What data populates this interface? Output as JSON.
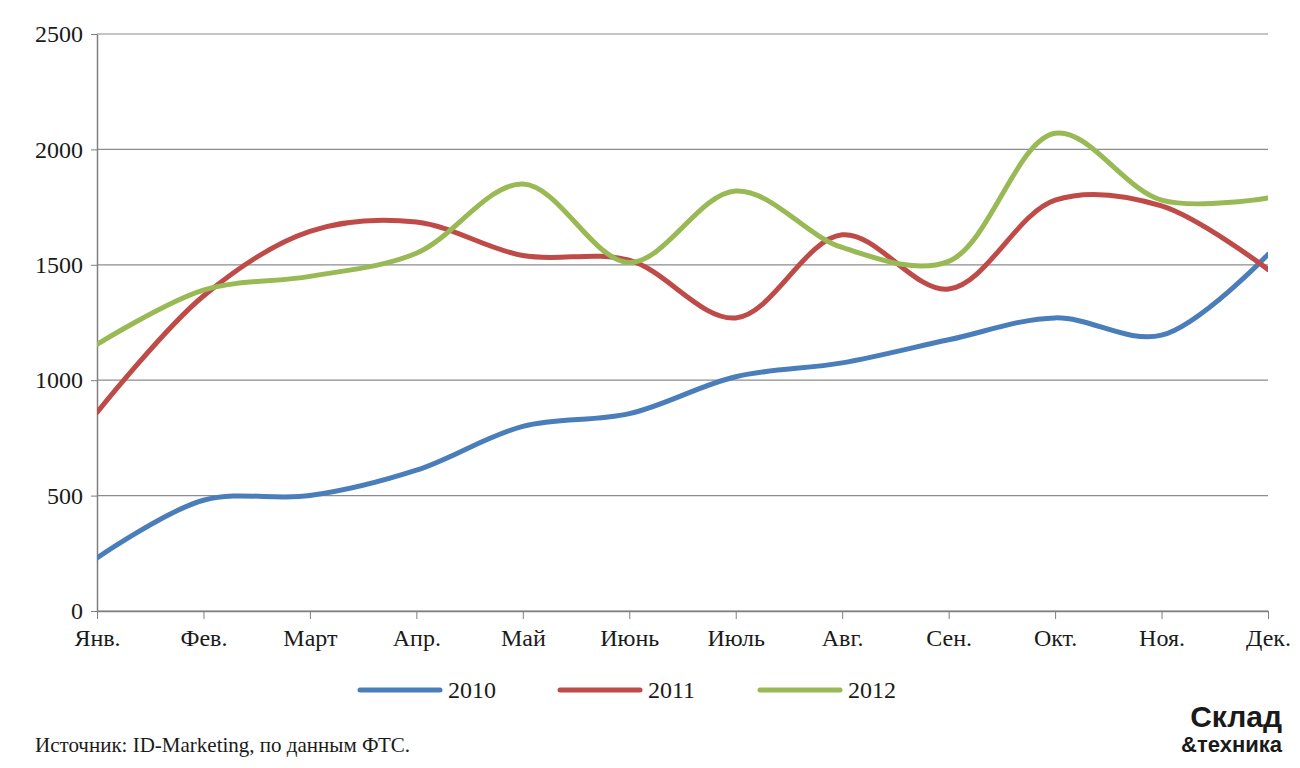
{
  "chart_data": {
    "type": "line",
    "categories": [
      "Янв.",
      "Фев.",
      "Март",
      "Апр.",
      "Май",
      "Июнь",
      "Июль",
      "Авг.",
      "Сен.",
      "Окт.",
      "Ноя.",
      "Дек."
    ],
    "series": [
      {
        "name": "2010",
        "color": "#4a7ebb",
        "values": [
          230,
          480,
          500,
          610,
          800,
          855,
          1015,
          1075,
          1175,
          1270,
          1195,
          1545
        ]
      },
      {
        "name": "2011",
        "color": "#be4b48",
        "values": [
          860,
          1365,
          1645,
          1685,
          1540,
          1520,
          1270,
          1630,
          1395,
          1780,
          1755,
          1480
        ]
      },
      {
        "name": "2012",
        "color": "#98b954",
        "values": [
          1155,
          1390,
          1450,
          1550,
          1850,
          1510,
          1820,
          1575,
          1515,
          2070,
          1780,
          1790
        ]
      }
    ],
    "ylim": [
      0,
      2500
    ],
    "yticks": [
      0,
      500,
      1000,
      1500,
      2000,
      2500
    ],
    "grid": true,
    "legend": "bottom",
    "source": "Источник: ID-Marketing, по данным ФТС.",
    "watermark": [
      "Склад",
      "&техника"
    ]
  }
}
